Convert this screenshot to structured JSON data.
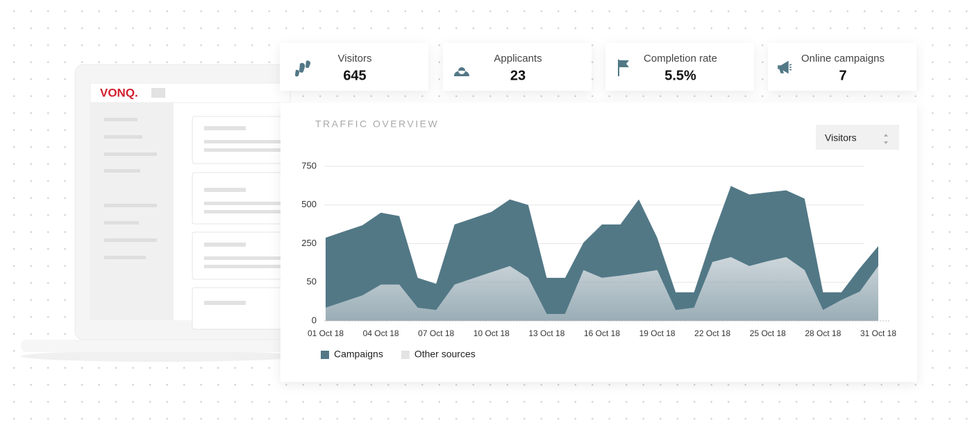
{
  "logo": "VONQ.",
  "stats": [
    {
      "label": "Visitors",
      "value": "645"
    },
    {
      "label": "Applicants",
      "value": "23"
    },
    {
      "label": "Completion rate",
      "value": "5.5%"
    },
    {
      "label": "Online campaigns",
      "value": "7"
    }
  ],
  "dropdown": "Visitors",
  "chart_data": {
    "type": "area",
    "stacked": true,
    "title": "TRAFFIC OVERVIEW",
    "categories": [
      "01 Oct 18",
      null,
      null,
      "04 Oct 18",
      null,
      null,
      "07 Oct 18",
      null,
      null,
      "10 Oct 18",
      null,
      null,
      "13 Oct 18",
      null,
      null,
      "16 Oct 18",
      null,
      null,
      "19 Oct 18",
      null,
      null,
      "22 Oct 18",
      null,
      null,
      "25 Oct 18",
      null,
      null,
      "28 Oct 18",
      null,
      null,
      "31 Oct 18"
    ],
    "series": [
      {
        "name": "Campaigns",
        "color": "#527886",
        "values": [
          271,
          304,
          336,
          403,
          381,
          56,
          34,
          327,
          344,
          353,
          402,
          427,
          64,
          64,
          144,
          301,
          290,
          438,
          175,
          23,
          20,
          142,
          443,
          434,
          423,
          415,
          428,
          23,
          10,
          85,
          103
        ]
      },
      {
        "name": "Other sources",
        "color": "#8fa4ae",
        "values": [
          17,
          25,
          33,
          47,
          47,
          17,
          14,
          47,
          70,
          102,
          134,
          73,
          9,
          9,
          113,
          73,
          84,
          98,
          113,
          14,
          17,
          155,
          180,
          134,
          159,
          180,
          113,
          14,
          27,
          38,
          134
        ]
      }
    ],
    "ylim": [
      0,
      750
    ],
    "yticks": [
      0,
      50,
      250,
      500,
      750
    ],
    "grid": true,
    "legend": "bottom-left"
  }
}
